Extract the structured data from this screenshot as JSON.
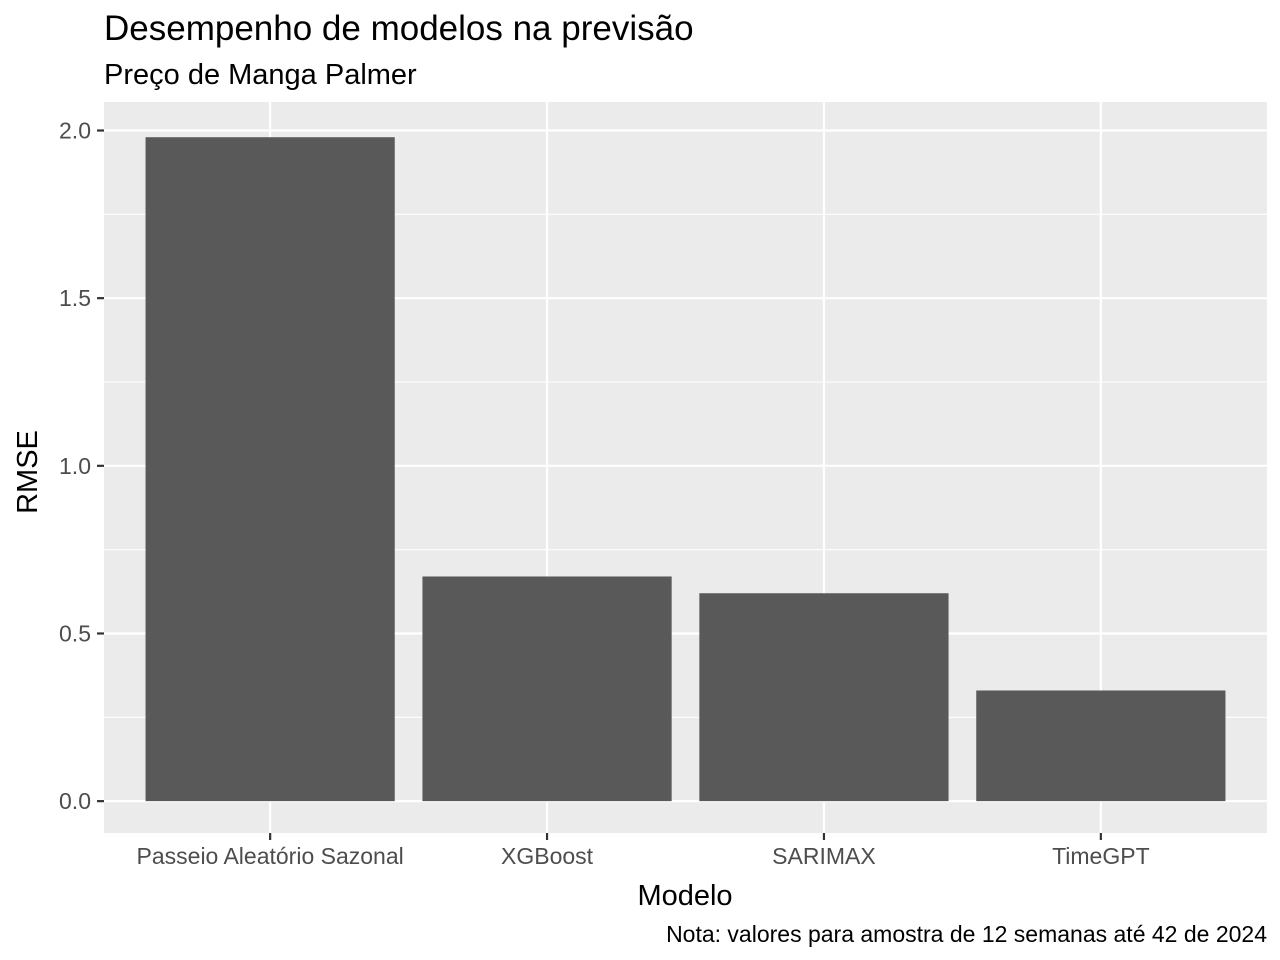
{
  "chart_data": {
    "type": "bar",
    "title": "Desempenho de modelos na previsão",
    "subtitle": "Preço de Manga Palmer",
    "xlabel": "Modelo",
    "ylabel": "RMSE",
    "caption": "Nota: valores para amostra de 12 semanas até 42 de 2024",
    "categories": [
      "Passeio Aleatório Sazonal",
      "XGBoost",
      "SARIMAX",
      "TimeGPT"
    ],
    "values": [
      1.98,
      0.67,
      0.62,
      0.33
    ],
    "ylim": [
      -0.095,
      2.085
    ],
    "yticks": [
      0.0,
      0.5,
      1.0,
      1.5,
      2.0
    ],
    "ytick_labels": [
      "0.0",
      "0.5",
      "1.0",
      "1.5",
      "2.0"
    ],
    "grid": true,
    "legend": "none",
    "colors": {
      "bar": "#595959",
      "panel": "#ebebeb",
      "grid": "#ffffff",
      "tick_text": "#4d4d4d",
      "tick_mark": "#333333"
    }
  }
}
